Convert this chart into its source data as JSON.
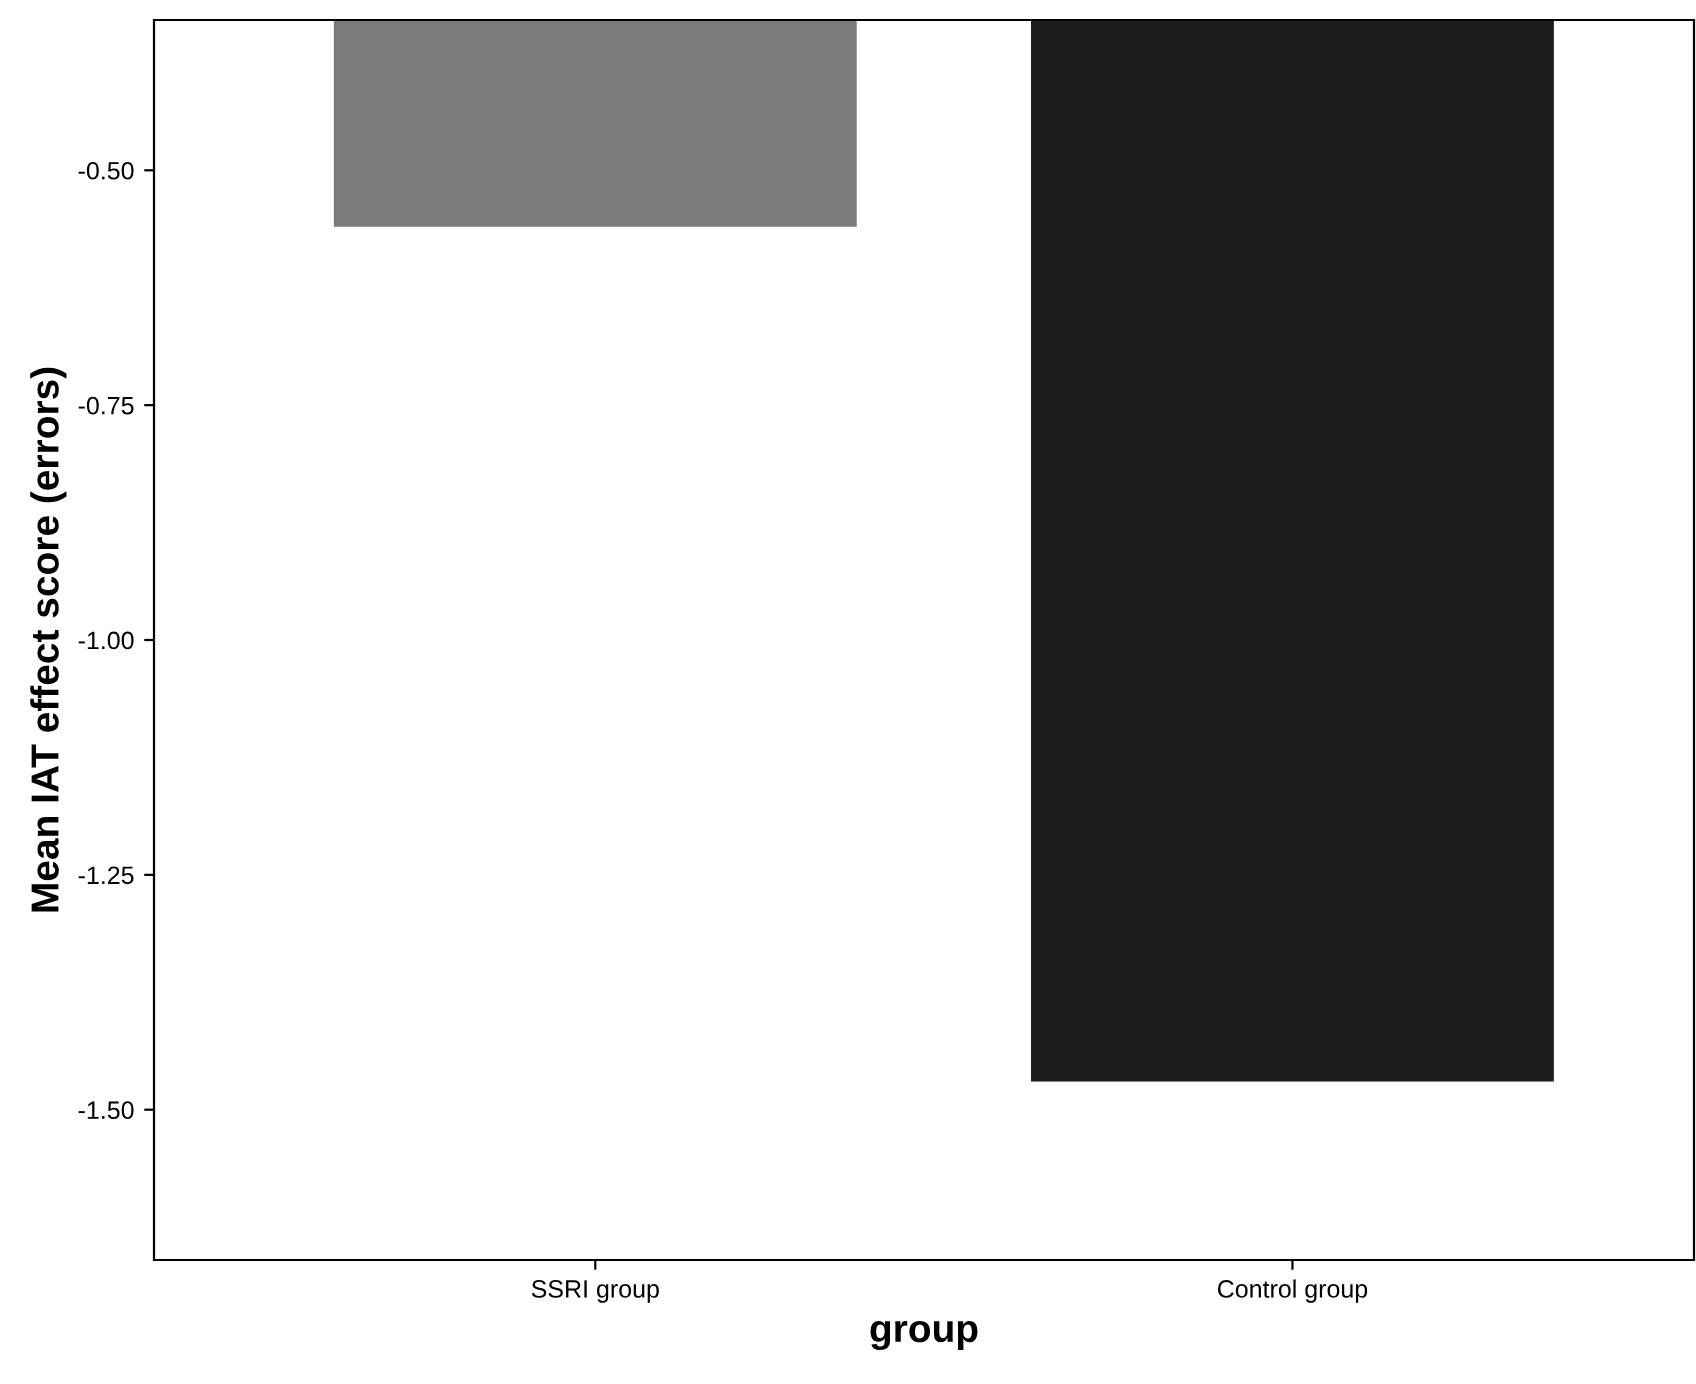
{
  "chart_data": {
    "type": "bar",
    "xlabel": "group",
    "ylabel": "Mean IAT effect score (errors)",
    "categories": [
      "SSRI group",
      "Control group"
    ],
    "values": [
      -0.56,
      -1.47
    ],
    "colors": [
      "#7a7a7a",
      "#1c1c1c"
    ],
    "ylim": [
      -1.66,
      -0.34
    ],
    "yticks": [
      {
        "value": -0.5,
        "label": "-0.50"
      },
      {
        "value": -0.75,
        "label": "-0.75"
      },
      {
        "value": -1.0,
        "label": "-1.00"
      },
      {
        "value": -1.25,
        "label": "-1.25"
      },
      {
        "value": -1.5,
        "label": "-1.50"
      }
    ],
    "grid": false,
    "legend": false
  }
}
